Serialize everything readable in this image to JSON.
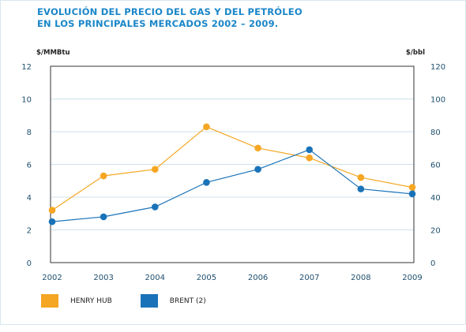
{
  "chart_data": {
    "type": "line",
    "title_lines": [
      "EVOLUCIÓN DEL PRECIO DEL GAS Y DEL PETRÓLEO",
      "EN LOS PRINCIPALES MERCADOS 2002 – 2009."
    ],
    "y_left_unit": "$/MMBtu",
    "y_right_unit": "$/bbl",
    "x": [
      "2002",
      "2003",
      "2004",
      "2005",
      "2006",
      "2007",
      "2008",
      "2009"
    ],
    "y_left_ticks": [
      "0",
      "2",
      "4",
      "6",
      "8",
      "10",
      "12"
    ],
    "y_right_ticks": [
      "0",
      "20",
      "40",
      "60",
      "80",
      "100",
      "120"
    ],
    "ylim_left": [
      0,
      12
    ],
    "ylim_right": [
      0,
      120
    ],
    "grid": true,
    "legend_position": "bottom-left",
    "series": [
      {
        "name": "HENRY HUB",
        "axis": "left",
        "color": "#f5a623",
        "values": [
          3.2,
          5.3,
          5.7,
          8.3,
          7.0,
          6.4,
          5.2,
          4.6
        ]
      },
      {
        "name": "BRENT (2)",
        "axis": "right",
        "color": "#1a73b8",
        "values": [
          25,
          28,
          34,
          49,
          57,
          69,
          45,
          42
        ]
      }
    ]
  },
  "colors": {
    "title": "#1a86c8",
    "grid": "#cfe2ec",
    "axis_text": "#1f4f6e"
  }
}
